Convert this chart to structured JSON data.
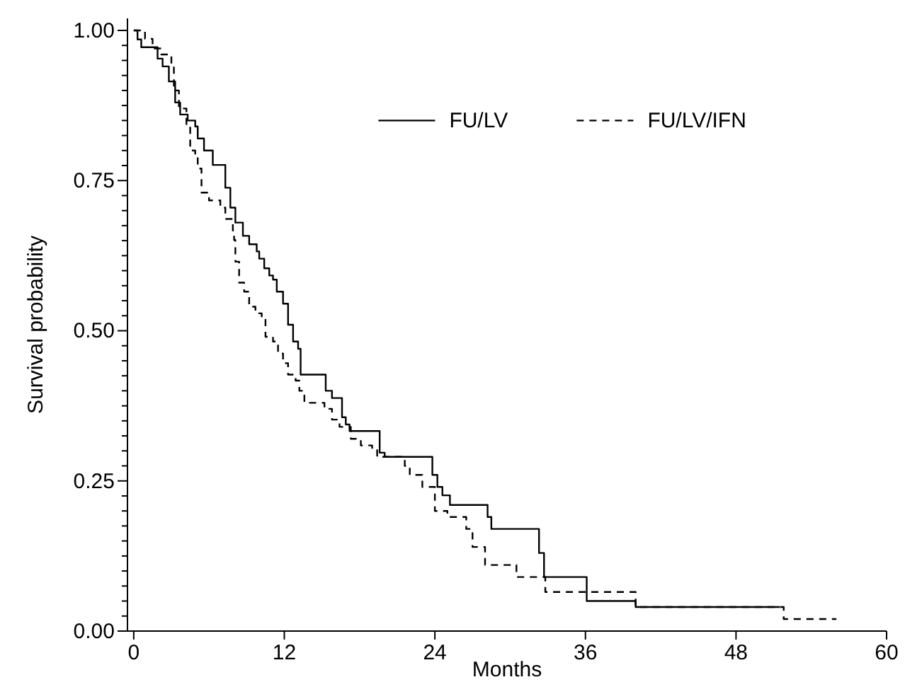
{
  "chart_data": {
    "type": "step",
    "xlabel": "Months",
    "ylabel": "Survival probability",
    "xlim": [
      -0.5,
      60
    ],
    "ylim": [
      0,
      1.02
    ],
    "xticks": [
      0,
      12,
      24,
      36,
      48,
      60
    ],
    "yticks": [
      {
        "value": 0,
        "label": "0.00"
      },
      {
        "value": 0.025,
        "label": null
      },
      {
        "value": 0.05,
        "label": null
      },
      {
        "value": 0.075,
        "label": null
      },
      {
        "value": 0.1,
        "label": null
      },
      {
        "value": 0.125,
        "label": null
      },
      {
        "value": 0.15,
        "label": null
      },
      {
        "value": 0.175,
        "label": null
      },
      {
        "value": 0.2,
        "label": null
      },
      {
        "value": 0.225,
        "label": null
      },
      {
        "value": 0.25,
        "label": "0.25"
      },
      {
        "value": 0.275,
        "label": null
      },
      {
        "value": 0.3,
        "label": null
      },
      {
        "value": 0.325,
        "label": null
      },
      {
        "value": 0.35,
        "label": null
      },
      {
        "value": 0.375,
        "label": null
      },
      {
        "value": 0.4,
        "label": null
      },
      {
        "value": 0.425,
        "label": null
      },
      {
        "value": 0.45,
        "label": null
      },
      {
        "value": 0.475,
        "label": null
      },
      {
        "value": 0.5,
        "label": "0.50"
      },
      {
        "value": 0.525,
        "label": null
      },
      {
        "value": 0.55,
        "label": null
      },
      {
        "value": 0.575,
        "label": null
      },
      {
        "value": 0.6,
        "label": null
      },
      {
        "value": 0.625,
        "label": null
      },
      {
        "value": 0.65,
        "label": null
      },
      {
        "value": 0.675,
        "label": null
      },
      {
        "value": 0.7,
        "label": null
      },
      {
        "value": 0.725,
        "label": null
      },
      {
        "value": 0.75,
        "label": "0.75"
      },
      {
        "value": 0.775,
        "label": null
      },
      {
        "value": 0.8,
        "label": null
      },
      {
        "value": 0.825,
        "label": null
      },
      {
        "value": 0.85,
        "label": null
      },
      {
        "value": 0.875,
        "label": null
      },
      {
        "value": 0.9,
        "label": null
      },
      {
        "value": 0.925,
        "label": null
      },
      {
        "value": 0.95,
        "label": null
      },
      {
        "value": 0.975,
        "label": null
      },
      {
        "value": 1,
        "label": "1.00"
      }
    ],
    "grid": false,
    "legend": "top right",
    "marker": "none",
    "series": [
      {
        "name": "FU/LV",
        "color": "#000000",
        "line_style": "solid",
        "x": [
          0,
          0.3,
          0.6,
          1.9,
          2.3,
          2.8,
          3.3,
          3.7,
          4.3,
          4.9,
          5.1,
          5.6,
          6.3,
          7.3,
          7.7,
          8.1,
          8.7,
          9.2,
          9.8,
          10,
          10.4,
          10.8,
          11.1,
          11.4,
          11.9,
          12.3,
          12.7,
          13.1,
          13.3,
          15.3,
          15.8,
          16.6,
          16.9,
          17.2,
          19.6,
          20,
          23.8,
          24.2,
          24.6,
          25.2,
          28.2,
          28.5,
          32.3,
          32.7,
          36.1,
          40,
          51.5
        ],
        "values": [
          1,
          0.985,
          0.972,
          0.953,
          0.94,
          0.915,
          0.88,
          0.86,
          0.85,
          0.84,
          0.82,
          0.8,
          0.776,
          0.738,
          0.705,
          0.68,
          0.658,
          0.644,
          0.632,
          0.62,
          0.604,
          0.592,
          0.585,
          0.565,
          0.545,
          0.51,
          0.482,
          0.47,
          0.427,
          0.4,
          0.388,
          0.356,
          0.344,
          0.333,
          0.297,
          0.29,
          0.26,
          0.24,
          0.226,
          0.21,
          0.19,
          0.17,
          0.13,
          0.09,
          0.05,
          0.04,
          0.04
        ]
      },
      {
        "name": "FU/LV/IFN",
        "color": "#000000",
        "line_style": "dashed",
        "x": [
          0,
          0.9,
          1.5,
          2.2,
          3,
          3.2,
          3.6,
          4.2,
          4.5,
          4.9,
          5.1,
          5.4,
          6,
          6.9,
          7.3,
          7.9,
          8,
          8.1,
          8.4,
          8.8,
          9.2,
          9.7,
          10.2,
          10.5,
          11.1,
          11.5,
          11.9,
          12.3,
          12.9,
          13.2,
          13.6,
          15.2,
          15.8,
          16.4,
          17.3,
          18.1,
          19,
          19.4,
          21.6,
          22,
          23,
          24,
          25,
          26.5,
          27,
          28,
          30.5,
          32.8,
          40,
          51.8,
          56
        ],
        "values": [
          1,
          0.986,
          0.97,
          0.96,
          0.94,
          0.9,
          0.87,
          0.84,
          0.8,
          0.79,
          0.77,
          0.73,
          0.717,
          0.705,
          0.686,
          0.667,
          0.651,
          0.615,
          0.58,
          0.565,
          0.54,
          0.529,
          0.521,
          0.49,
          0.482,
          0.462,
          0.446,
          0.427,
          0.417,
          0.4,
          0.38,
          0.37,
          0.352,
          0.34,
          0.32,
          0.309,
          0.305,
          0.29,
          0.275,
          0.26,
          0.24,
          0.2,
          0.19,
          0.17,
          0.14,
          0.11,
          0.09,
          0.065,
          0.04,
          0.02,
          0.02
        ]
      }
    ]
  }
}
